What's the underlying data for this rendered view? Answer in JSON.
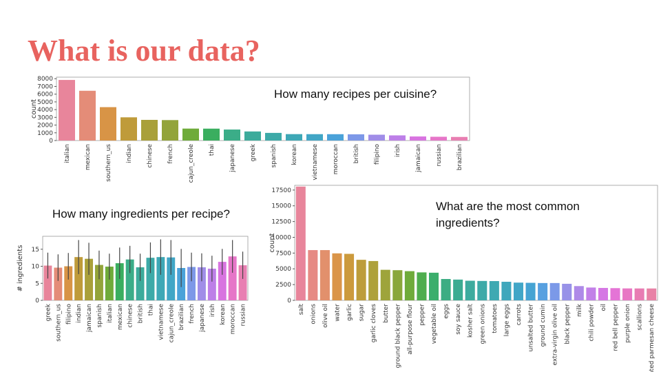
{
  "title": "What is our data?",
  "chart_data": [
    {
      "type": "bar",
      "annotation": "How many recipes per cuisine?",
      "ylabel": "count",
      "categories": [
        "italian",
        "mexican",
        "southern_us",
        "indian",
        "chinese",
        "french",
        "cajun_creole",
        "thai",
        "japanese",
        "greek",
        "spanish",
        "korean",
        "vietnamese",
        "moroccan",
        "british",
        "filipino",
        "irish",
        "jamaican",
        "russian",
        "brazilian"
      ],
      "values": [
        7838,
        6438,
        4320,
        3003,
        2673,
        2646,
        1546,
        1539,
        1423,
        1175,
        989,
        830,
        825,
        821,
        804,
        755,
        667,
        526,
        489,
        467
      ],
      "colors": [
        "#e8859b",
        "#e48c78",
        "#d89446",
        "#bf9b3a",
        "#a9a03a",
        "#93a43a",
        "#6fab3a",
        "#3aae5f",
        "#3bad88",
        "#3cab9b",
        "#3daaa8",
        "#3ea8b6",
        "#41a6c6",
        "#4aa2d9",
        "#7d98e8",
        "#a08de8",
        "#bd7fe8",
        "#d874e0",
        "#e676c8",
        "#e87fb2"
      ],
      "ylim": [
        0,
        8200
      ],
      "yticks": [
        0,
        1000,
        2000,
        3000,
        4000,
        5000,
        6000,
        7000,
        8000
      ]
    },
    {
      "type": "bar",
      "annotation": "How many ingredients per recipe?",
      "ylabel": "# ingredients",
      "categories": [
        "greek",
        "southern_us",
        "filipino",
        "indian",
        "jamaican",
        "spanish",
        "italian",
        "mexican",
        "chinese",
        "british",
        "thai",
        "vietnamese",
        "cajun_creole",
        "brazilian",
        "french",
        "japanese",
        "irish",
        "korean",
        "moroccan",
        "russian"
      ],
      "values": [
        10.2,
        9.6,
        10.0,
        12.7,
        12.2,
        10.4,
        9.9,
        10.9,
        12.0,
        9.7,
        12.5,
        12.7,
        12.6,
        9.5,
        9.8,
        9.7,
        9.3,
        11.3,
        12.9,
        10.3
      ],
      "errors": [
        3.8,
        3.9,
        3.9,
        5.0,
        4.7,
        4.2,
        3.8,
        4.6,
        4.0,
        4.0,
        4.5,
        5.2,
        5.1,
        5.6,
        4.2,
        4.1,
        3.8,
        3.8,
        4.8,
        4.0
      ],
      "colors": [
        "#e8859b",
        "#e48c78",
        "#d89446",
        "#bf9b3a",
        "#a9a03a",
        "#93a43a",
        "#6fab3a",
        "#3aae5f",
        "#3bad88",
        "#3cab9b",
        "#3daaa8",
        "#3ea8b6",
        "#41a6c6",
        "#4aa2d9",
        "#7d98e8",
        "#a08de8",
        "#bd7fe8",
        "#d874e0",
        "#e676c8",
        "#e87fb2"
      ],
      "ylim": [
        0,
        18.8
      ],
      "yticks": [
        0,
        5,
        10,
        15
      ]
    },
    {
      "type": "bar",
      "annotation": "What are the most common ingredients?",
      "ylabel": "count",
      "categories": [
        "salt",
        "onions",
        "olive oil",
        "water",
        "garlic",
        "sugar",
        "garlic cloves",
        "butter",
        "ground black pepper",
        "all-purpose flour",
        "pepper",
        "vegetable oil",
        "eggs",
        "soy sauce",
        "kosher salt",
        "green onions",
        "tomatoes",
        "large eggs",
        "carrots",
        "unsalted butter",
        "ground cumin",
        "extra-virgin olive oil",
        "black pepper",
        "milk",
        "chili powder",
        "oil",
        "red bell pepper",
        "purple onion",
        "scallions",
        "grated parmesan cheese"
      ],
      "values": [
        18049,
        7972,
        7972,
        7457,
        7380,
        6434,
        6237,
        4848,
        4785,
        4632,
        4438,
        4385,
        3388,
        3296,
        3113,
        3078,
        3058,
        2948,
        2814,
        2782,
        2747,
        2747,
        2627,
        2263,
        2036,
        1970,
        1939,
        1896,
        1891,
        1886
      ],
      "colors": [
        "#e8859b",
        "#e68a84",
        "#e2906c",
        "#da9549",
        "#cc9a3d",
        "#bd9d3b",
        "#aea13b",
        "#9ea43b",
        "#8aa73b",
        "#6fab3b",
        "#4fad4f",
        "#3bae6c",
        "#3cad83",
        "#3cac92",
        "#3dab9e",
        "#3daaa8",
        "#3ea9b2",
        "#3fa7bc",
        "#41a6c7",
        "#45a3d3",
        "#57a0e0",
        "#7b99e8",
        "#9892e8",
        "#ae8ae8",
        "#c280e8",
        "#d577e4",
        "#e474d6",
        "#e877c4",
        "#e87cb3",
        "#e882a6"
      ],
      "ylim": [
        0,
        18250
      ],
      "yticks": [
        0,
        2500,
        5000,
        7500,
        10000,
        12500,
        15000,
        17500
      ]
    }
  ]
}
